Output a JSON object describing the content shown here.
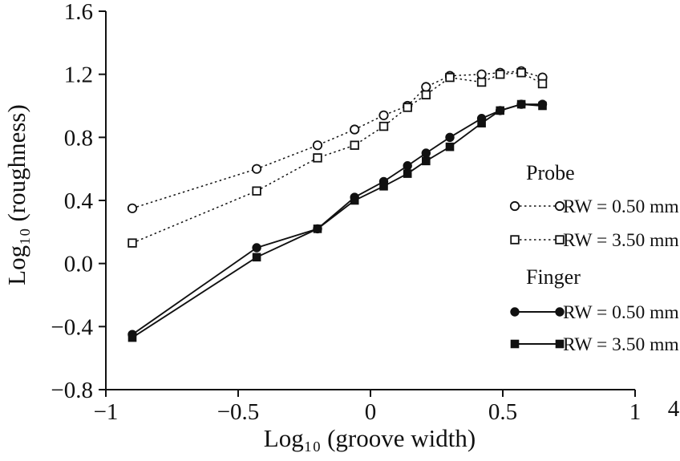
{
  "figure": {
    "figure_number": "4"
  },
  "chart_data": {
    "type": "line",
    "title": "",
    "xlabel": "Log₁₀ (groove width)",
    "ylabel": "Log₁₀ (roughness)",
    "xlim": [
      -1,
      1
    ],
    "ylim": [
      -0.8,
      1.6
    ],
    "grid": false,
    "legend_position": "inside-right-middle",
    "x_ticks": [
      -1,
      -0.5,
      0,
      0.5,
      1
    ],
    "x_tick_labels": [
      "−1",
      "−0.5",
      "0",
      "0.5",
      "1"
    ],
    "y_ticks": [
      -0.8,
      -0.4,
      0,
      0.4,
      0.8,
      1.2,
      1.6
    ],
    "y_tick_labels": [
      "−0.8",
      "−0.4",
      "0.0",
      "0.4",
      "0.8",
      "1.2",
      "1.6"
    ],
    "x": [
      -0.9,
      -0.43,
      -0.2,
      -0.06,
      0.05,
      0.14,
      0.21,
      0.3,
      0.42,
      0.49,
      0.57,
      0.65
    ],
    "series": [
      {
        "name": "Probe RW = 0.50 mm",
        "group": "Probe",
        "label": "RW = 0.50 mm",
        "marker": "circle-open",
        "line": "dashed",
        "values": [
          0.35,
          0.6,
          0.75,
          0.85,
          0.94,
          1.0,
          1.12,
          1.19,
          1.2,
          1.21,
          1.22,
          1.18
        ]
      },
      {
        "name": "Probe RW = 3.50 mm",
        "group": "Probe",
        "label": "RW = 3.50 mm",
        "marker": "square-open",
        "line": "dashed",
        "values": [
          0.13,
          0.46,
          0.67,
          0.75,
          0.87,
          0.99,
          1.07,
          1.18,
          1.15,
          1.2,
          1.21,
          1.14
        ]
      },
      {
        "name": "Finger RW = 0.50 mm",
        "group": "Finger",
        "label": "RW = 0.50 mm",
        "marker": "circle-filled",
        "line": "solid",
        "values": [
          -0.45,
          0.1,
          0.22,
          0.42,
          0.52,
          0.62,
          0.7,
          0.8,
          0.92,
          0.97,
          1.01,
          1.01
        ]
      },
      {
        "name": "Finger RW = 3.50 mm",
        "group": "Finger",
        "label": "RW = 3.50 mm",
        "marker": "square-filled",
        "line": "solid",
        "values": [
          -0.47,
          0.04,
          0.22,
          0.4,
          0.49,
          0.57,
          0.65,
          0.74,
          0.89,
          0.97,
          1.01,
          1.0
        ]
      }
    ],
    "legend": {
      "groups": [
        {
          "title": "Probe",
          "series": [
            0,
            1
          ]
        },
        {
          "title": "Finger",
          "series": [
            2,
            3
          ]
        }
      ]
    },
    "colors": {
      "stroke": "#111111",
      "background": "#ffffff"
    }
  }
}
